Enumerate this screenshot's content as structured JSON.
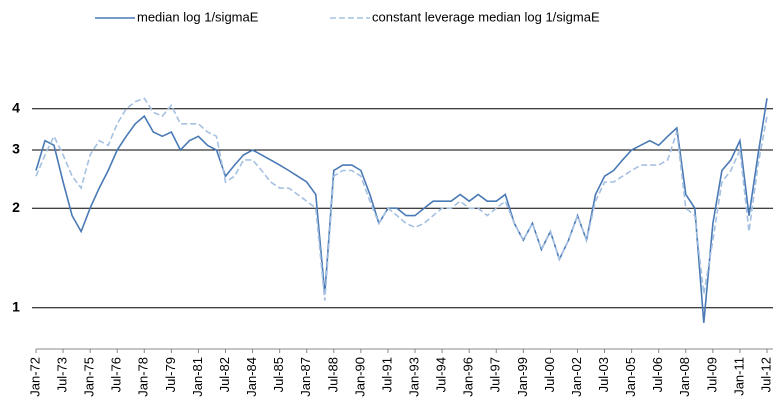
{
  "chart_data": {
    "type": "line",
    "categories": [
      "Jan-72",
      null,
      null,
      "Jul-73",
      null,
      null,
      "Jan-75",
      null,
      null,
      "Jul-76",
      null,
      null,
      "Jan-78",
      null,
      null,
      "Jul-79",
      null,
      null,
      "Jan-81",
      null,
      null,
      "Jul-82",
      null,
      null,
      "Jan-84",
      null,
      null,
      "Jul-85",
      null,
      null,
      "Jan-87",
      null,
      null,
      "Jul-88",
      null,
      null,
      "Jan-90",
      null,
      null,
      "Jul-91",
      null,
      null,
      "Jan-93",
      null,
      null,
      "Jul-94",
      null,
      null,
      "Jan-96",
      null,
      null,
      "Jul-97",
      null,
      null,
      "Jan-99",
      null,
      null,
      "Jul-00",
      null,
      null,
      "Jan-02",
      null,
      null,
      "Jul-03",
      null,
      null,
      "Jan-05",
      null,
      null,
      "Jul-06",
      null,
      null,
      "Jan-08",
      null,
      null,
      "Jul-09",
      null,
      null,
      "Jan-11",
      null,
      null,
      "Jul-12"
    ],
    "series": [
      {
        "name": "median log 1/sigmaE",
        "color": "#4a7ab5",
        "dash": false,
        "values": [
          2.6,
          3.2,
          3.1,
          2.4,
          1.9,
          1.7,
          2.0,
          2.3,
          2.6,
          3.0,
          3.3,
          3.6,
          3.8,
          3.4,
          3.3,
          3.4,
          3.0,
          3.2,
          3.3,
          3.1,
          3.0,
          2.5,
          2.7,
          2.9,
          3.0,
          2.9,
          2.8,
          2.7,
          2.6,
          2.5,
          2.4,
          2.2,
          1.1,
          2.6,
          2.7,
          2.7,
          2.6,
          2.2,
          1.8,
          2.0,
          2.0,
          1.9,
          1.9,
          2.0,
          2.1,
          2.1,
          2.1,
          2.2,
          2.1,
          2.2,
          2.1,
          2.1,
          2.2,
          1.8,
          1.6,
          1.8,
          1.5,
          1.7,
          1.4,
          1.6,
          1.9,
          1.6,
          2.2,
          2.5,
          2.6,
          2.8,
          3.0,
          3.1,
          3.2,
          3.1,
          3.3,
          3.5,
          2.2,
          2.0,
          0.9,
          1.8,
          2.6,
          2.8,
          3.2,
          1.9,
          2.9,
          4.3
        ]
      },
      {
        "name": "constant leverage median log 1/sigmaE",
        "color": "#a6c0e2",
        "dash": true,
        "values": [
          2.5,
          2.9,
          3.3,
          2.9,
          2.5,
          2.3,
          2.9,
          3.2,
          3.1,
          3.6,
          4.0,
          4.2,
          4.3,
          3.9,
          3.8,
          4.1,
          3.6,
          3.6,
          3.6,
          3.4,
          3.3,
          2.4,
          2.5,
          2.8,
          2.8,
          2.6,
          2.4,
          2.3,
          2.3,
          2.2,
          2.1,
          2.0,
          1.05,
          2.5,
          2.6,
          2.6,
          2.5,
          2.1,
          1.8,
          2.0,
          1.9,
          1.8,
          1.75,
          1.8,
          1.9,
          2.0,
          2.0,
          2.1,
          2.0,
          2.0,
          1.9,
          2.0,
          2.1,
          1.8,
          1.6,
          1.8,
          1.5,
          1.7,
          1.4,
          1.6,
          1.9,
          1.6,
          2.1,
          2.4,
          2.4,
          2.5,
          2.6,
          2.7,
          2.7,
          2.7,
          2.8,
          3.4,
          2.0,
          1.9,
          1.1,
          1.6,
          2.4,
          2.6,
          3.0,
          1.7,
          2.7,
          3.8
        ]
      }
    ],
    "ylim": [
      0.75,
      5.5
    ],
    "yticks": [
      1,
      2,
      3,
      4
    ],
    "log_y": true,
    "grid": true,
    "legend": "top"
  }
}
